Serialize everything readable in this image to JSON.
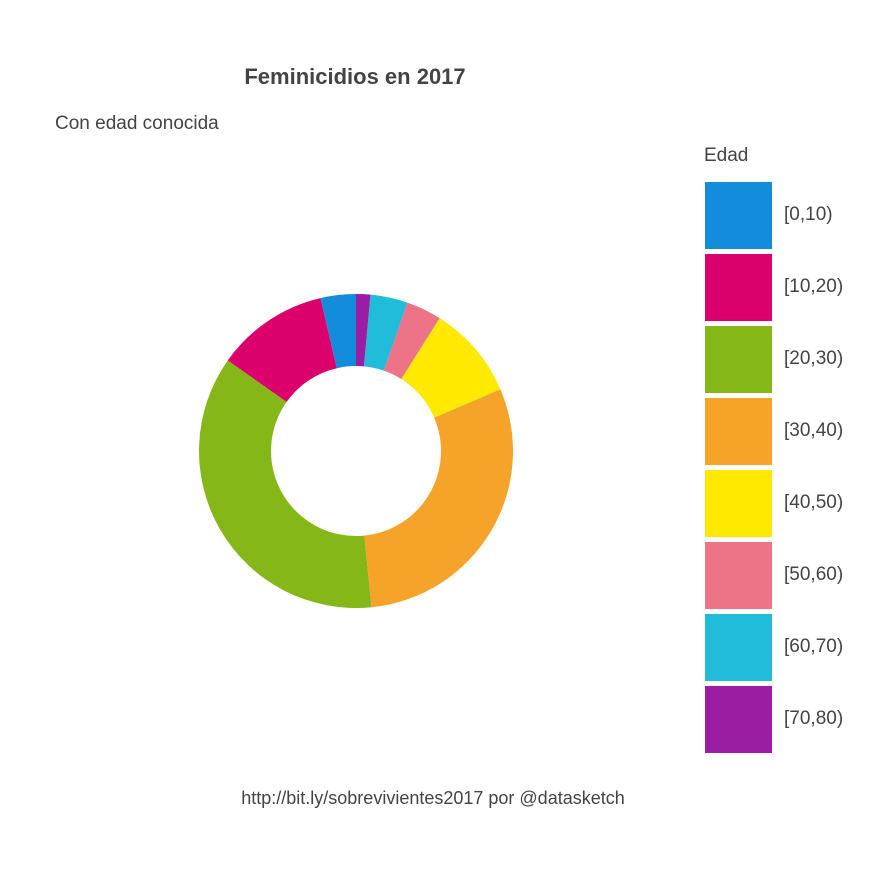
{
  "chart_data": {
    "type": "pie",
    "title": "Feminicidios en 2017",
    "subtitle": "Con edad conocida",
    "legend_title": "Edad",
    "legend_position": "right",
    "donut": true,
    "categories": [
      "[0,10)",
      "[10,20)",
      "[20,30)",
      "[30,40)",
      "[40,50)",
      "[50,60)",
      "[60,70)",
      "[70,80)"
    ],
    "values": [
      3.7,
      11.8,
      37.0,
      30.4,
      9.8,
      3.7,
      3.9,
      1.5
    ],
    "colors": [
      "#138ddb",
      "#dc006c",
      "#86b719",
      "#f6a329",
      "#ffe900",
      "#ec7486",
      "#20bcd9",
      "#9a1da4"
    ],
    "caption": "http://bit.ly/sobrevivientes2017 por @datasketch"
  }
}
